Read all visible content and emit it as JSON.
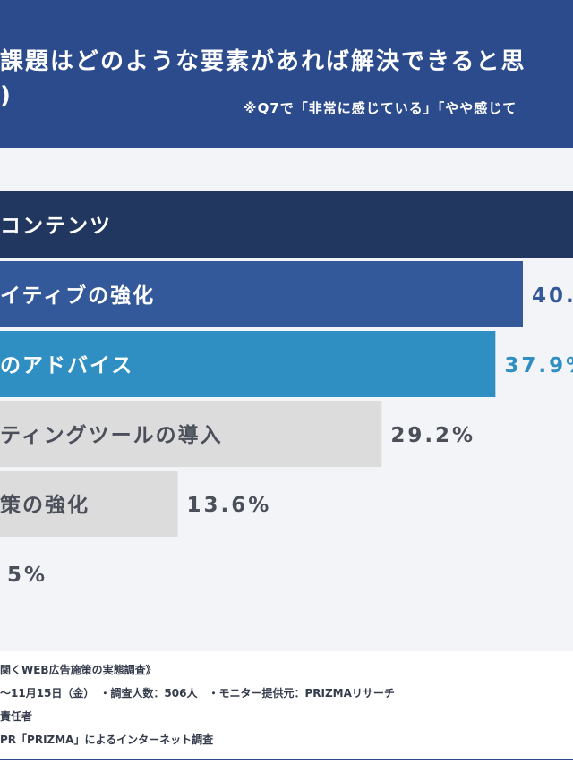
{
  "header": {
    "title": "課題はどのような要素があれば解決できると思",
    "title_cont": ")",
    "note": "※Q7で「非常に感じている」「やや感じて"
  },
  "chart_data": {
    "type": "bar",
    "orientation": "horizontal",
    "categories": [
      "コンテンツ",
      "イティブの強化",
      "のアドバイス",
      "ティングツールの導入",
      "策の強化",
      ""
    ],
    "values": [
      null,
      40.0,
      37.9,
      29.2,
      13.6,
      5
    ],
    "value_labels": [
      "",
      "40.",
      "37.9%",
      "29.2%",
      "13.6%",
      "5%"
    ],
    "bar_colors": [
      "#22375f",
      "#34599a",
      "#2f8fc2",
      "#dcdcdc",
      "#dcdcdc",
      "#dcdcdc"
    ],
    "label_colors": [
      "#ffffff",
      "#ffffff",
      "#ffffff",
      "#4a4f5a",
      "#4a4f5a",
      "#4a4f5a"
    ],
    "value_colors": [
      "#ffffff",
      "#34599a",
      "#2f8fc2",
      "#4a4f5a",
      "#4a4f5a",
      "#4a4f5a"
    ],
    "xlim": [
      0,
      50
    ],
    "grid": false,
    "legend": "none"
  },
  "footer": {
    "lines": [
      "関くWEB広告施策の実態調査》",
      "〜11月15日（金）　・調査人数：506人　・モニター提供元：PRIZMAリサーチ",
      "責任者",
      "PR「PRIZMA」によるインターネット調査"
    ]
  }
}
